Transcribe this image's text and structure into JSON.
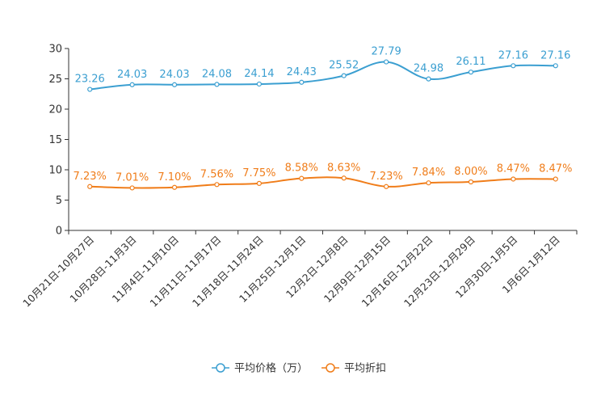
{
  "chart_data": {
    "type": "line",
    "categories": [
      "10月21日-10月27日",
      "10月28日-11月3日",
      "11月4日-11月10日",
      "11月11日-11月17日",
      "11月18日-11月24日",
      "11月25日-12月1日",
      "12月2日-12月8日",
      "12月9日-12月15日",
      "12月16日-12月22日",
      "12月23日-12月29日",
      "12月30日-1月5日",
      "1月6日-1月12日"
    ],
    "ylim": [
      0,
      30
    ],
    "yticks": [
      0,
      5,
      10,
      15,
      20,
      25,
      30
    ],
    "series": [
      {
        "name": "平均价格（万）",
        "color": "#3b9fd1",
        "values": [
          23.26,
          24.03,
          24.03,
          24.08,
          24.14,
          24.43,
          25.52,
          27.79,
          24.98,
          26.11,
          27.16,
          27.16
        ],
        "labels": [
          "23.26",
          "24.03",
          "24.03",
          "24.08",
          "24.14",
          "24.43",
          "25.52",
          "27.79",
          "24.98",
          "26.11",
          "27.16",
          "27.16"
        ]
      },
      {
        "name": "平均折扣",
        "color": "#f07d1a",
        "values": [
          7.23,
          7.01,
          7.1,
          7.56,
          7.75,
          8.58,
          8.63,
          7.23,
          7.84,
          8.0,
          8.47,
          8.47
        ],
        "labels": [
          "7.23%",
          "7.01%",
          "7.10%",
          "7.56%",
          "7.75%",
          "8.58%",
          "8.63%",
          "7.23%",
          "7.84%",
          "8.00%",
          "8.47%",
          "8.47%"
        ]
      }
    ],
    "legend_position": "bottom-center"
  }
}
